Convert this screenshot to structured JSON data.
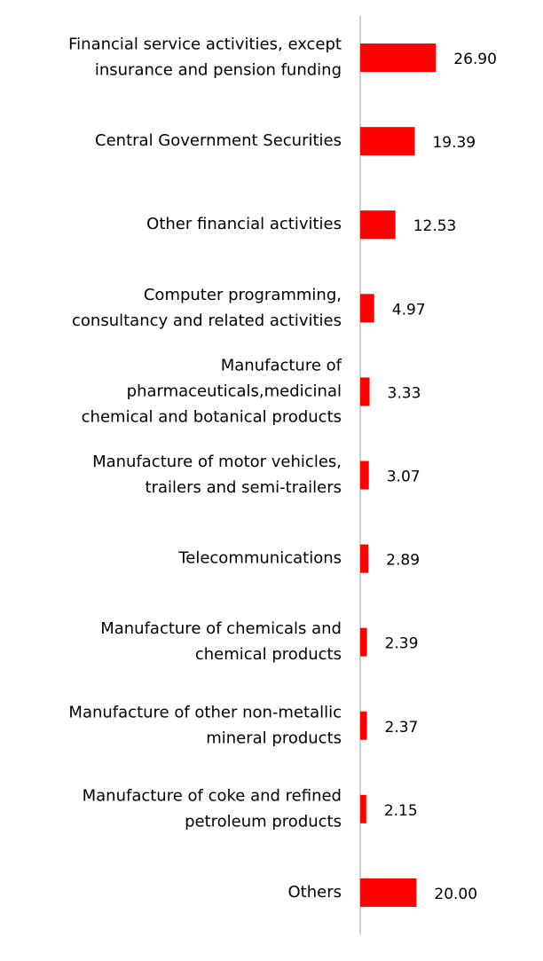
{
  "chart_data": {
    "type": "bar",
    "orientation": "horizontal",
    "color": "#ff0000",
    "categories": [
      "Financial service activities, except\ninsurance and pension funding",
      "Central Government Securities",
      "Other financial activities",
      "Computer programming,\nconsultancy and related activities",
      "Manufacture of\npharmaceuticals,medicinal\nchemical and botanical products",
      "Manufacture of motor vehicles,\ntrailers and semi-trailers",
      "Telecommunications",
      "Manufacture of chemicals and\nchemical products",
      "Manufacture of other non-metallic\nmineral products",
      "Manufacture of coke and refined\npetroleum products",
      "Others"
    ],
    "values": [
      26.9,
      19.39,
      12.53,
      4.97,
      3.33,
      3.07,
      2.89,
      2.39,
      2.37,
      2.15,
      20.0
    ],
    "value_labels": [
      "26.90",
      "19.39",
      "12.53",
      "4.97",
      "3.33",
      "3.07",
      "2.89",
      "2.39",
      "2.37",
      "2.15",
      "20.00"
    ],
    "xlim": [
      0,
      65
    ]
  }
}
